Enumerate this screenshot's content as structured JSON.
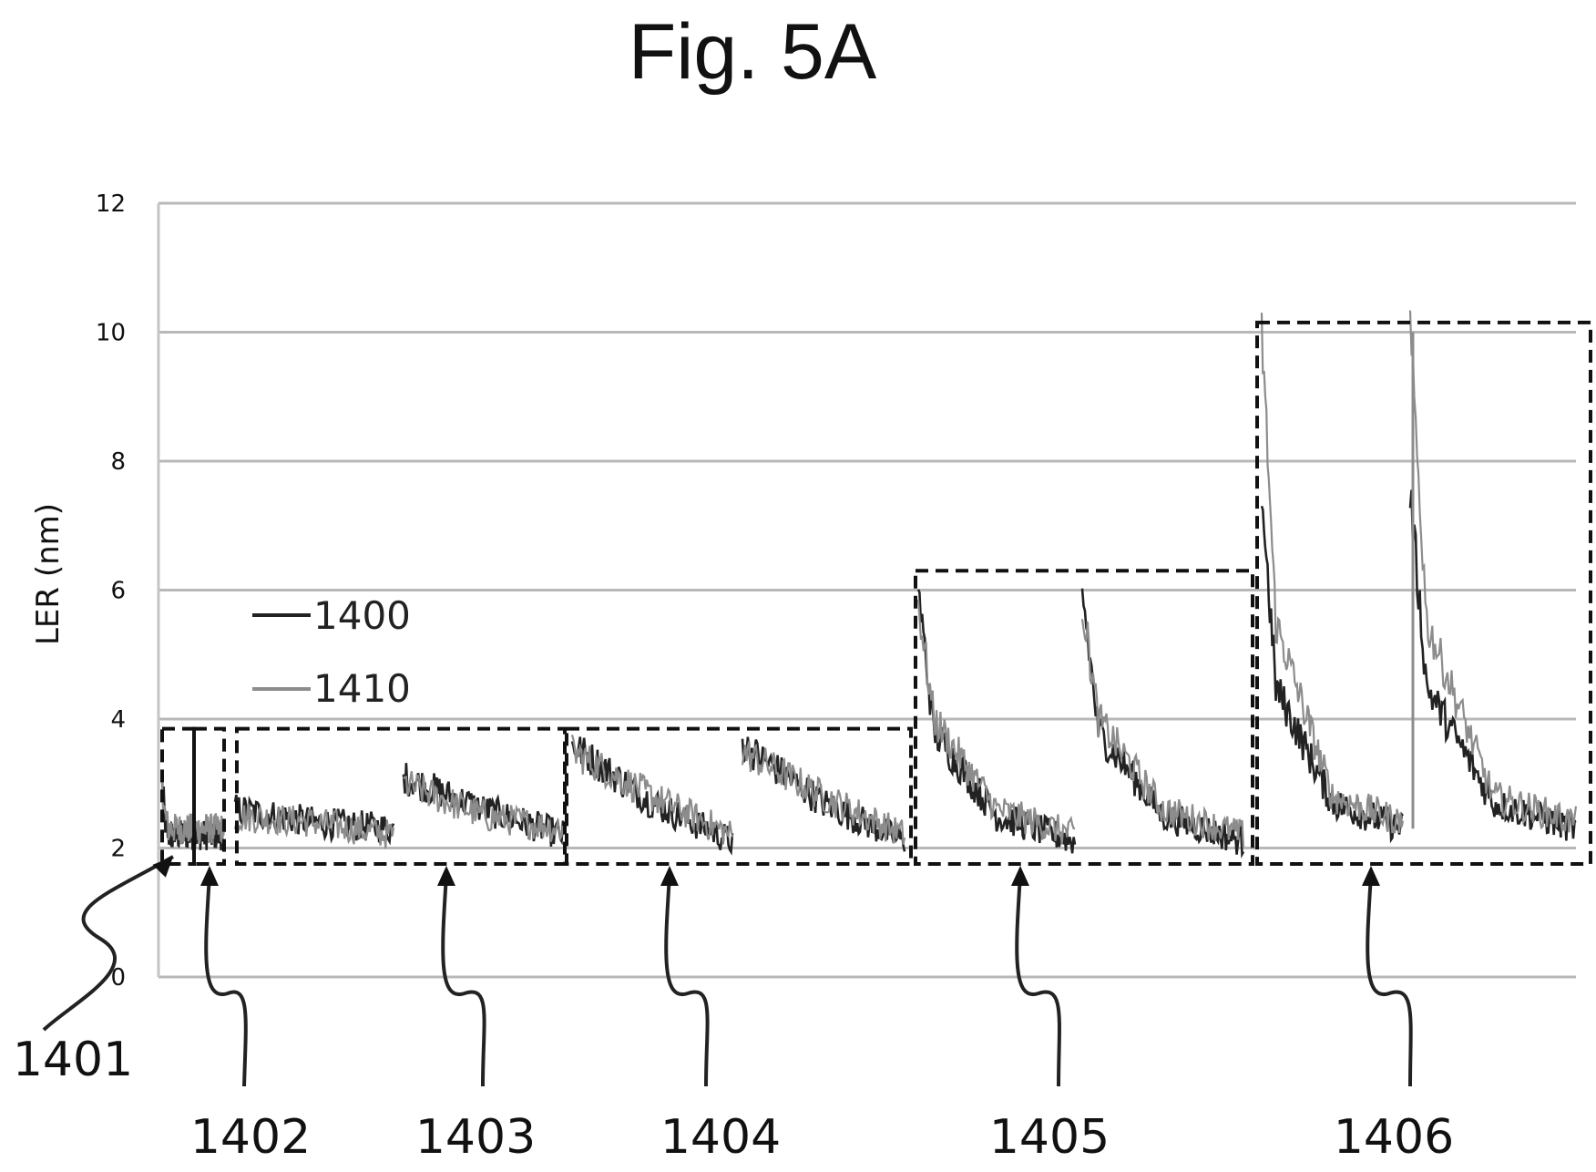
{
  "figure": {
    "title": "Fig. 5A"
  },
  "chart_data": {
    "type": "line",
    "title": "Fig. 5A",
    "ylabel": "LER (nm)",
    "xlabel": "",
    "ylim": [
      0,
      12
    ],
    "yticks": [
      "0",
      "2",
      "4",
      "6",
      "8",
      "10",
      "12"
    ],
    "grid": true,
    "legend_position": "left-middle",
    "series": [
      {
        "name": "1400",
        "color": "#222222"
      },
      {
        "name": "1410",
        "color": "#8c8c8c"
      }
    ],
    "segments": [
      {
        "label": "1401",
        "x": [
          0,
          0.05,
          0.1
        ],
        "y_1400": [
          3.0,
          2.4,
          2.2
        ],
        "y_1410": [
          2.9,
          2.5,
          2.3
        ]
      },
      {
        "label": "1402",
        "x": [
          0,
          0.5,
          1
        ],
        "y_1400": [
          2.6,
          2.4,
          2.3
        ],
        "y_1410": [
          2.5,
          2.4,
          2.2
        ]
      },
      {
        "label": "1403",
        "x": [
          0,
          0.5,
          1
        ],
        "y_1400": [
          3.1,
          2.6,
          2.2
        ],
        "y_1410": [
          3.0,
          2.5,
          2.3
        ]
      },
      {
        "label": "1404",
        "x": [
          0,
          0.5,
          1
        ],
        "y_1400": [
          3.6,
          2.7,
          2.1
        ],
        "y_1410": [
          3.5,
          2.8,
          2.2
        ]
      },
      {
        "label": "1405",
        "x": [
          0,
          0.1,
          0.5,
          1
        ],
        "y_1400": [
          6.0,
          3.8,
          2.5,
          2.1
        ],
        "y_1410": [
          5.8,
          4.0,
          2.6,
          2.2
        ]
      },
      {
        "label": "1406",
        "x": [
          0,
          0.1,
          0.5,
          1
        ],
        "y_1400": [
          7.5,
          4.5,
          2.7,
          2.3
        ],
        "y_1410": [
          10.0,
          5.5,
          2.8,
          2.4
        ]
      }
    ]
  },
  "reference_labels": [
    "1401",
    "1402",
    "1403",
    "1404",
    "1405",
    "1406"
  ]
}
